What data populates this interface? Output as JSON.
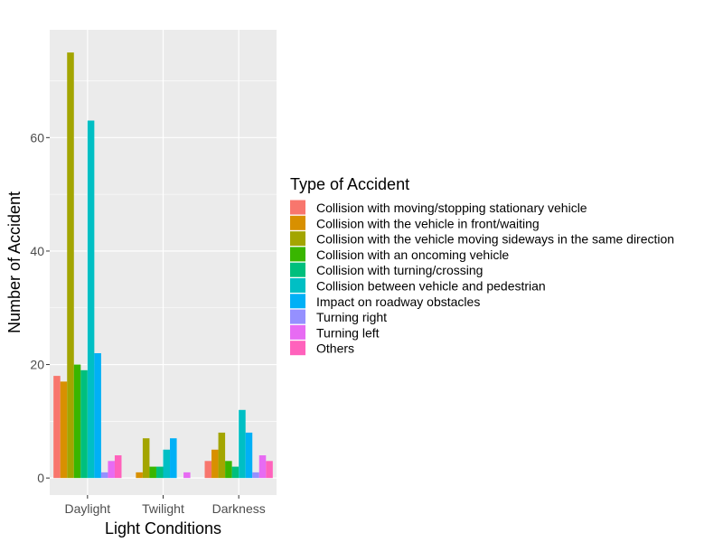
{
  "chart_data": {
    "type": "bar",
    "xlabel": "Light Conditions",
    "ylabel": "Number of Accident",
    "categories": [
      "Daylight",
      "Twilight",
      "Darkness"
    ],
    "ylim": [
      -3,
      79
    ],
    "yticks": [
      0,
      20,
      40,
      60
    ],
    "grid": true,
    "legend": {
      "title": "Type of Accident",
      "position": "right"
    },
    "series": [
      {
        "name": "Collision with moving/stopping stationary vehicle",
        "color": "#F8766D",
        "values": [
          18,
          0,
          3
        ]
      },
      {
        "name": "Collision with the vehicle in front/waiting",
        "color": "#D89000",
        "values": [
          17,
          1,
          5
        ]
      },
      {
        "name": "Collision with the vehicle moving sideways in the same direction",
        "color": "#A3A500",
        "values": [
          75,
          7,
          8
        ]
      },
      {
        "name": "Collision with an oncoming vehicle",
        "color": "#39B600",
        "values": [
          20,
          2,
          3
        ]
      },
      {
        "name": "Collision with turning/crossing",
        "color": "#00BF7D",
        "values": [
          19,
          2,
          2
        ]
      },
      {
        "name": "Collision between vehicle and pedestrian",
        "color": "#00BFC4",
        "values": [
          63,
          5,
          12
        ]
      },
      {
        "name": "Impact on roadway obstacles",
        "color": "#00B0F6",
        "values": [
          22,
          7,
          8
        ]
      },
      {
        "name": "Turning right",
        "color": "#9590FF",
        "values": [
          1,
          0,
          1
        ]
      },
      {
        "name": "Turning left",
        "color": "#E76BF3",
        "values": [
          3,
          1,
          4
        ]
      },
      {
        "name": "Others",
        "color": "#FF62BC",
        "values": [
          4,
          0,
          3
        ]
      }
    ]
  }
}
